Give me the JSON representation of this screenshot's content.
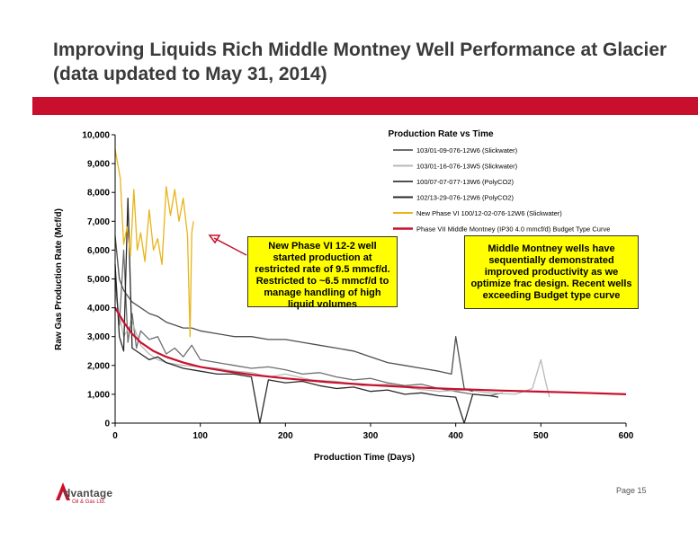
{
  "slide": {
    "title_line1": "Improving Liquids Rich Middle Montney Well Performance at Glacier",
    "title_line2": "(data updated to May 31, 2014)",
    "page": "Page 15",
    "logo_name": "dvantage",
    "logo_sub": "Oil & Gas Ltd."
  },
  "callouts": {
    "left": "New Phase VI 12-2 well started production at restricted rate of 9.5 mmcf/d. Restricted to ~6.5 mmcf/d to manage handling of high liquid volumes",
    "right": "Middle Montney wells have sequentially demonstrated improved productivity as we optimize frac design.  Recent wells exceeding Budget type curve"
  },
  "colors": {
    "accent_red": "#c8102e",
    "callout_bg": "#ffff00"
  },
  "chart_data": {
    "type": "line",
    "title": "Production Rate vs Time",
    "xlabel": "Production Time (Days)",
    "ylabel": "Raw Gas Production Rate (Mcf/d)",
    "xlim": [
      0,
      600
    ],
    "ylim": [
      0,
      10000
    ],
    "xticks": [
      0,
      100,
      200,
      300,
      400,
      500,
      600
    ],
    "yticks": [
      0,
      1000,
      2000,
      3000,
      4000,
      5000,
      6000,
      7000,
      8000,
      9000,
      10000
    ],
    "xtick_labels": [
      "0",
      "100",
      "200",
      "300",
      "400",
      "500",
      "600"
    ],
    "ytick_labels": [
      "0",
      "1,000",
      "2,000",
      "3,000",
      "4,000",
      "5,000",
      "6,000",
      "7,000",
      "8,000",
      "9,000",
      "10,000"
    ],
    "grid": false,
    "legend_position": "top-right",
    "series": [
      {
        "name": "103/01-09-076-12W6 (Slickwater)",
        "color": "#6e6e6e",
        "x": [
          0,
          5,
          10,
          15,
          20,
          25,
          30,
          40,
          50,
          60,
          70,
          80,
          90,
          100,
          120,
          140,
          160,
          180,
          200,
          220,
          240,
          260,
          280,
          300,
          320,
          340,
          360,
          380,
          400,
          420,
          440,
          455
        ],
        "y": [
          5000,
          3400,
          6000,
          2800,
          3800,
          2600,
          3200,
          2900,
          3000,
          2400,
          2600,
          2300,
          2700,
          2200,
          2100,
          2000,
          1900,
          1950,
          1850,
          1700,
          1750,
          1600,
          1500,
          1550,
          1400,
          1300,
          1350,
          1200,
          1100,
          1000,
          950,
          1050
        ]
      },
      {
        "name": "103/01-16-076-13W5 (Slickwater)",
        "color": "#b8b8b8",
        "x": [
          0,
          10,
          20,
          30,
          40,
          50,
          60,
          80,
          100,
          120,
          140,
          160,
          180,
          200,
          230,
          260,
          290,
          320,
          350,
          380,
          410,
          440,
          470,
          490,
          500,
          505,
          510
        ],
        "y": [
          4500,
          3000,
          3500,
          2700,
          2400,
          2200,
          2100,
          2000,
          1950,
          1900,
          1800,
          1750,
          1600,
          1700,
          1500,
          1450,
          1300,
          1350,
          1200,
          1100,
          1150,
          1050,
          1000,
          1200,
          2200,
          1500,
          900
        ]
      },
      {
        "name": "100/07-07-077-13W6 (PolyCO2)",
        "color": "#4f4f4f",
        "x": [
          0,
          5,
          10,
          20,
          30,
          40,
          50,
          60,
          70,
          80,
          90,
          100,
          120,
          140,
          160,
          180,
          200,
          220,
          240,
          260,
          280,
          300,
          320,
          340,
          360,
          380,
          395,
          400,
          410,
          420
        ],
        "y": [
          6500,
          5000,
          4600,
          4200,
          4000,
          3800,
          3700,
          3500,
          3400,
          3300,
          3300,
          3200,
          3100,
          3000,
          3000,
          2900,
          2900,
          2800,
          2700,
          2600,
          2500,
          2300,
          2100,
          2000,
          1900,
          1800,
          1700,
          3000,
          1200,
          1100
        ]
      },
      {
        "name": "102/13-29-076-12W6 (PolyCO2)",
        "color": "#2a2a2a",
        "x": [
          0,
          5,
          10,
          15,
          20,
          30,
          40,
          50,
          60,
          70,
          80,
          100,
          120,
          140,
          160,
          170,
          180,
          200,
          220,
          240,
          260,
          280,
          300,
          320,
          340,
          360,
          380,
          400,
          410,
          420,
          440,
          450
        ],
        "y": [
          5500,
          3000,
          2500,
          7800,
          2600,
          2400,
          2200,
          2300,
          2100,
          2000,
          1900,
          1800,
          1700,
          1700,
          1600,
          0,
          1500,
          1400,
          1450,
          1300,
          1200,
          1250,
          1100,
          1150,
          1000,
          1050,
          950,
          900,
          0,
          1000,
          950,
          900
        ]
      },
      {
        "name": "New Phase VI 100/12-02-076-12W6 (Slickwater)",
        "color": "#e8b419",
        "x": [
          0,
          3,
          6,
          10,
          14,
          18,
          22,
          26,
          30,
          35,
          40,
          45,
          50,
          55,
          60,
          65,
          70,
          75,
          80,
          85,
          88,
          90,
          92
        ],
        "y": [
          9500,
          9000,
          8500,
          6200,
          6800,
          5800,
          8100,
          6000,
          6600,
          5600,
          7400,
          6000,
          6400,
          5500,
          8200,
          7200,
          8100,
          7000,
          7800,
          6500,
          3000,
          6600,
          7000
        ]
      },
      {
        "name": "Phase VII Middle Montney (IP30 4.0 mmcf/d) Budget Type Curve",
        "color": "#c8102e",
        "x": [
          0,
          10,
          20,
          30,
          45,
          60,
          80,
          100,
          130,
          160,
          200,
          250,
          300,
          350,
          400,
          450,
          500,
          550,
          600
        ],
        "y": [
          4000,
          3500,
          3100,
          2800,
          2500,
          2300,
          2100,
          1950,
          1800,
          1680,
          1550,
          1420,
          1320,
          1240,
          1180,
          1130,
          1090,
          1050,
          1000
        ]
      }
    ]
  }
}
